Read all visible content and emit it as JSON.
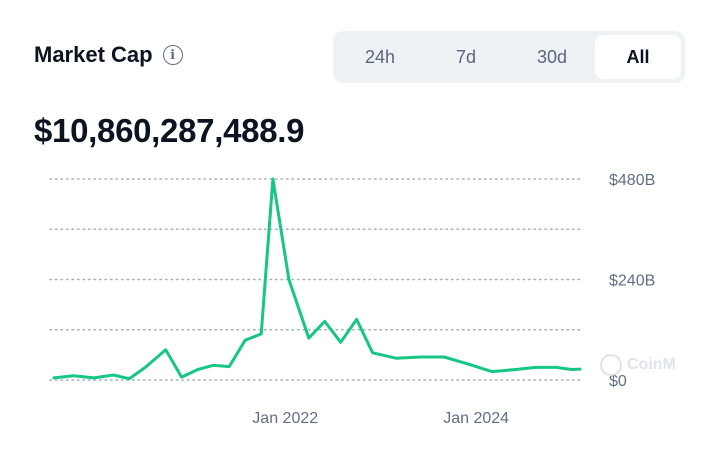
{
  "header": {
    "title": "Market Cap",
    "info_icon": "info-icon",
    "tabs": [
      {
        "label": "24h",
        "active": false
      },
      {
        "label": "7d",
        "active": false
      },
      {
        "label": "30d",
        "active": false
      },
      {
        "label": "All",
        "active": true
      }
    ]
  },
  "value": "$10,860,287,488.9",
  "watermark": "CoinM",
  "colors": {
    "line": "#16c784",
    "grid": "#a6b0c3",
    "axis_text": "#616e85",
    "tab_bg": "#eff2f5"
  },
  "chart_data": {
    "type": "line",
    "y_unit": "USD (billions)",
    "ylim": [
      0,
      480
    ],
    "y_ticks": [
      {
        "value": 480,
        "label": "$480B"
      },
      {
        "value": 240,
        "label": "$240B"
      },
      {
        "value": 0,
        "label": "$0"
      }
    ],
    "gridlines": [
      0,
      120,
      240,
      360,
      480
    ],
    "x_ticks": [
      {
        "date": "2022-01-01",
        "label": "Jan 2022"
      },
      {
        "date": "2024-01-01",
        "label": "Jan 2024"
      }
    ],
    "xlim": [
      "2019-08-01",
      "2025-02-01"
    ],
    "series": [
      {
        "points": [
          [
            "2019-08-01",
            5
          ],
          [
            "2019-10-15",
            10
          ],
          [
            "2020-01-01",
            5
          ],
          [
            "2020-03-15",
            12
          ],
          [
            "2020-05-15",
            3
          ],
          [
            "2020-07-15",
            30
          ],
          [
            "2020-10-01",
            72
          ],
          [
            "2020-12-01",
            7
          ],
          [
            "2021-02-01",
            25
          ],
          [
            "2021-04-01",
            35
          ],
          [
            "2021-06-01",
            32
          ],
          [
            "2021-08-01",
            95
          ],
          [
            "2021-10-01",
            110
          ],
          [
            "2021-11-15",
            480
          ],
          [
            "2022-01-15",
            240
          ],
          [
            "2022-04-01",
            100
          ],
          [
            "2022-06-01",
            140
          ],
          [
            "2022-08-01",
            90
          ],
          [
            "2022-10-01",
            145
          ],
          [
            "2022-12-01",
            65
          ],
          [
            "2023-03-01",
            52
          ],
          [
            "2023-06-01",
            55
          ],
          [
            "2023-09-01",
            55
          ],
          [
            "2023-12-01",
            38
          ],
          [
            "2024-03-01",
            20
          ],
          [
            "2024-06-01",
            25
          ],
          [
            "2024-08-15",
            30
          ],
          [
            "2024-11-01",
            30
          ],
          [
            "2025-01-01",
            25
          ],
          [
            "2025-02-01",
            26
          ]
        ]
      }
    ]
  }
}
